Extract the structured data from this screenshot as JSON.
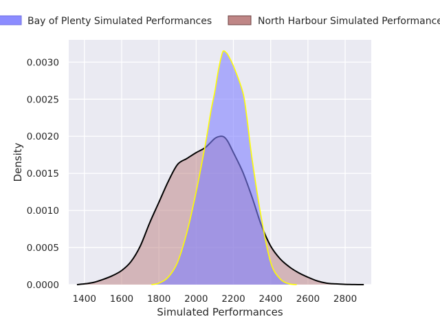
{
  "chart_data": {
    "type": "area",
    "title": "",
    "xlabel": "Simulated Performances",
    "ylabel": "Density",
    "xlim": [
      1316,
      2940
    ],
    "ylim": [
      0,
      0.0033
    ],
    "x_ticks": [
      1400,
      1600,
      1800,
      2000,
      2200,
      2400,
      2600,
      2800
    ],
    "x_tick_labels": [
      "1400",
      "1600",
      "1800",
      "2000",
      "2200",
      "2400",
      "2600",
      "2800"
    ],
    "y_ticks": [
      0,
      0.0005,
      0.001,
      0.0015,
      0.002,
      0.0025,
      0.003
    ],
    "y_tick_labels": [
      "0.0000",
      "0.0005",
      "0.0010",
      "0.0015",
      "0.0020",
      "0.0025",
      "0.0030"
    ],
    "grid": true,
    "legend_position": "top",
    "series": [
      {
        "name": "Bay of Plenty Simulated Performances",
        "fill_color": "#8080ff",
        "fill_opacity": 0.6,
        "line_color": "#ffff00",
        "x": [
          1760,
          1800,
          1850,
          1900,
          1950,
          2000,
          2050,
          2080,
          2100,
          2120,
          2140,
          2150,
          2160,
          2170,
          2200,
          2250,
          2270,
          2300,
          2350,
          2400,
          2450,
          2500,
          2540
        ],
        "y": [
          0.0,
          2e-05,
          0.0001,
          0.0003,
          0.0007,
          0.00125,
          0.0019,
          0.00235,
          0.0026,
          0.0029,
          0.00312,
          0.00315,
          0.00313,
          0.0031,
          0.00295,
          0.0026,
          0.0023,
          0.0017,
          0.0009,
          0.0003,
          8e-05,
          1e-05,
          0.0
        ]
      },
      {
        "name": "North Harbour Simulated Performances",
        "fill_color": "#bc7f7f",
        "fill_opacity": 0.5,
        "line_color": "#000000",
        "x": [
          1360,
          1400,
          1450,
          1500,
          1550,
          1600,
          1650,
          1700,
          1750,
          1800,
          1850,
          1900,
          1950,
          2000,
          2050,
          2100,
          2130,
          2150,
          2170,
          2200,
          2250,
          2300,
          2350,
          2400,
          2450,
          2500,
          2550,
          2600,
          2650,
          2700,
          2750,
          2800,
          2850,
          2900
        ],
        "y": [
          0.0,
          1e-05,
          3e-05,
          7e-05,
          0.00012,
          0.00019,
          0.00031,
          0.00052,
          0.00083,
          0.00111,
          0.00139,
          0.00162,
          0.0017,
          0.00178,
          0.00185,
          0.00197,
          0.002,
          0.00199,
          0.00193,
          0.00178,
          0.00152,
          0.00118,
          0.0008,
          0.00052,
          0.00035,
          0.00024,
          0.00016,
          0.0001,
          5e-05,
          2e-05,
          1e-05,
          4e-06,
          1e-06,
          0.0
        ]
      }
    ]
  }
}
